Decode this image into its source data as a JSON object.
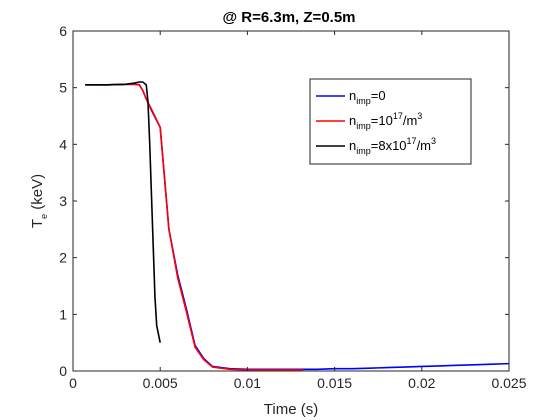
{
  "chart_data": {
    "type": "line",
    "title": "@ R=6.3m, Z=0.5m",
    "xlabel": "Time (s)",
    "ylabel": {
      "main": "T",
      "sub": "e",
      "rest": " (keV)"
    },
    "xlim": [
      0,
      0.025
    ],
    "ylim": [
      0,
      6
    ],
    "xticks": [
      {
        "v": 0,
        "label": "0"
      },
      {
        "v": 0.005,
        "label": "0.005"
      },
      {
        "v": 0.01,
        "label": "0.01"
      },
      {
        "v": 0.015,
        "label": "0.015"
      },
      {
        "v": 0.02,
        "label": "0.02"
      },
      {
        "v": 0.025,
        "label": "0.025"
      }
    ],
    "yticks": [
      {
        "v": 0,
        "label": "0"
      },
      {
        "v": 1,
        "label": "1"
      },
      {
        "v": 2,
        "label": "2"
      },
      {
        "v": 3,
        "label": "3"
      },
      {
        "v": 4,
        "label": "4"
      },
      {
        "v": 5,
        "label": "5"
      },
      {
        "v": 6,
        "label": "6"
      }
    ],
    "grid": false,
    "legend_position": "top-right",
    "series": [
      {
        "legend": {
          "base": "n",
          "sub": "imp",
          "rest": "=0",
          "sup": "",
          "tail": ""
        },
        "color": "#0000ff",
        "x": [
          0.0007,
          0.001,
          0.002,
          0.003,
          0.0035,
          0.0038,
          0.004,
          0.0042,
          0.0045,
          0.005,
          0.0055,
          0.006,
          0.0065,
          0.007,
          0.0075,
          0.008,
          0.009,
          0.01,
          0.011,
          0.012,
          0.013,
          0.014,
          0.015,
          0.016,
          0.017,
          0.018,
          0.019,
          0.02,
          0.021,
          0.022,
          0.023,
          0.024,
          0.025
        ],
        "y": [
          5.05,
          5.05,
          5.05,
          5.06,
          5.06,
          5.05,
          4.95,
          4.8,
          4.6,
          4.3,
          2.5,
          1.7,
          1.1,
          0.45,
          0.22,
          0.08,
          0.04,
          0.03,
          0.03,
          0.03,
          0.03,
          0.03,
          0.04,
          0.04,
          0.05,
          0.06,
          0.07,
          0.08,
          0.09,
          0.1,
          0.11,
          0.12,
          0.13
        ]
      },
      {
        "legend": {
          "base": "n",
          "sub": "imp",
          "rest": "=10",
          "sup": "17",
          "tail": "/m",
          "sup2": "3"
        },
        "color": "#ff0000",
        "x": [
          0.0007,
          0.001,
          0.002,
          0.003,
          0.0035,
          0.0038,
          0.004,
          0.0042,
          0.0045,
          0.005,
          0.0055,
          0.006,
          0.0065,
          0.007,
          0.0075,
          0.008,
          0.009,
          0.01,
          0.011,
          0.012,
          0.0132
        ],
        "y": [
          5.05,
          5.05,
          5.05,
          5.06,
          5.06,
          5.05,
          4.95,
          4.8,
          4.62,
          4.3,
          2.5,
          1.65,
          1.05,
          0.42,
          0.2,
          0.07,
          0.03,
          0.02,
          0.02,
          0.02,
          0.02
        ]
      },
      {
        "legend": {
          "base": "n",
          "sub": "imp",
          "rest": "=8x10",
          "sup": "17",
          "tail": "/m",
          "sup2": "3"
        },
        "color": "#000000",
        "x": [
          0.0007,
          0.001,
          0.002,
          0.003,
          0.0035,
          0.0038,
          0.004,
          0.0042,
          0.0043,
          0.0044,
          0.0045,
          0.0046,
          0.0047,
          0.0048,
          0.0049,
          0.005
        ],
        "y": [
          5.05,
          5.05,
          5.05,
          5.06,
          5.08,
          5.1,
          5.1,
          5.05,
          4.75,
          4.0,
          3.1,
          2.2,
          1.3,
          0.8,
          0.65,
          0.5
        ]
      }
    ]
  }
}
